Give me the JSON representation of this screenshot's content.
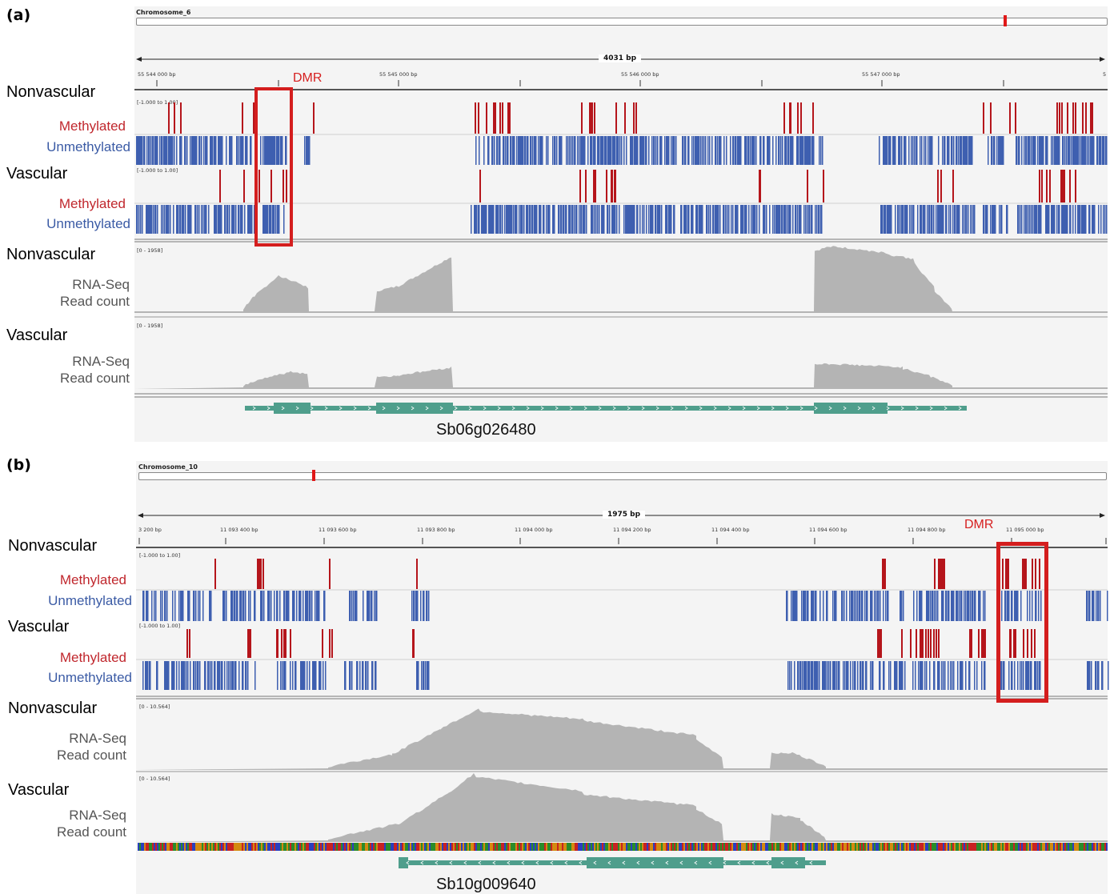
{
  "panels": [
    {
      "label": "(a)",
      "chromosome": "Chromosome_6",
      "span": "4031 bp",
      "ticks": [
        "55 544 000 bp",
        "55 545 000 bp",
        "55 546 000 bp",
        "55 547 000 bp",
        "5"
      ],
      "dmr_label": "DMR",
      "meth_range": "[-1.000 to 1.00]",
      "rna_range": "[0 - 1958]",
      "tracks": {
        "nonvascular": "Nonvascular",
        "vascular": "Vascular",
        "methylated": "Methylated",
        "unmethylated": "Unmethylated",
        "rna_line1": "RNA-Seq",
        "rna_line2": "Read count"
      },
      "gene": "Sb06g026480"
    },
    {
      "label": "(b)",
      "chromosome": "Chromosome_10",
      "span": "1975 bp",
      "ticks": [
        "3 200 bp",
        "11 093 400 bp",
        "11 093 600 bp",
        "11 093 800 bp",
        "11 094 000 bp",
        "11 094 200 bp",
        "11 094 400 bp",
        "11 094 600 bp",
        "11 094 800 bp",
        "11 095 000 bp"
      ],
      "dmr_label": "DMR",
      "meth_range": "[-1.000 to 1.00]",
      "rna_range": "[0 - 10.564]",
      "tracks": {
        "nonvascular": "Nonvascular",
        "vascular": "Vascular",
        "methylated": "Methylated",
        "unmethylated": "Unmethylated",
        "rna_line1": "RNA-Seq",
        "rna_line2": "Read count"
      },
      "gene": "Sb10g009640"
    }
  ],
  "colors": {
    "methylated": "#b5151b",
    "unmethylated": "#3e5fb0",
    "coverage": "#b4b4b4",
    "gene": "#4f9e8c",
    "dmr_box": "#d41e1e"
  }
}
